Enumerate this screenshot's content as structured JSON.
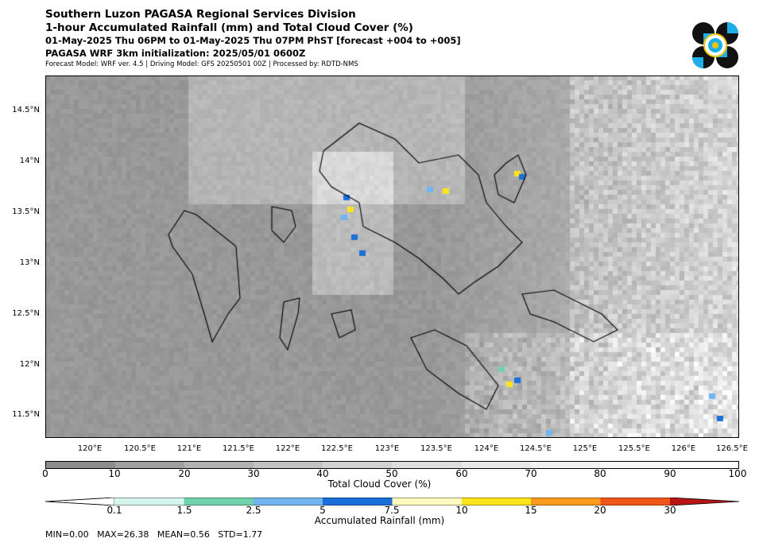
{
  "header": {
    "title_line1": "Southern Luzon PAGASA Regional Services Division",
    "title_line2": "1-hour Accumulated Rainfall (mm) and Total Cloud Cover (%)",
    "title_line3": "01-May-2025 Thu 06PM to 01-May-2025 Thu 07PM PhST [forecast +004 to +005]",
    "title_line4": "PAGASA WRF 3km initialization: 2025/05/01 0600Z",
    "title_line5": "Forecast Model: WRF ver. 4.5 | Driving Model: GFS 20250501 00Z | Processed by: RDTD-NMS"
  },
  "map": {
    "lat_labels": [
      "14.5°N",
      "14°N",
      "13.5°N",
      "13°N",
      "12.5°N",
      "12°N",
      "11.5°N"
    ],
    "lon_labels": [
      "120°E",
      "120.5°E",
      "121°E",
      "121.5°E",
      "122°E",
      "122.5°E",
      "123°E",
      "123.5°E",
      "124°E",
      "124.5°E",
      "125°E",
      "125.5°E",
      "126°E",
      "126.5°E"
    ]
  },
  "cloud_colorbar": {
    "label": "Total Cloud Cover (%)",
    "ticks": [
      "0",
      "10",
      "20",
      "30",
      "40",
      "50",
      "60",
      "70",
      "80",
      "90",
      "100"
    ],
    "colors": [
      "#8c8c8c",
      "#a0a0a0",
      "#b3b3b3",
      "#c3c3c3",
      "#d2d2d2",
      "#dedede",
      "#e8e8e8",
      "#f1f1f1",
      "#f8f8f8",
      "#ffffff"
    ]
  },
  "rain_colorbar": {
    "label": "Accumulated Rainfall (mm)",
    "ticks": [
      "0.1",
      "1.5",
      "2.5",
      "5",
      "7.5",
      "10",
      "15",
      "20",
      "30"
    ],
    "colors": [
      "#ffffff",
      "#d5f5ec",
      "#6fd2ac",
      "#71b5f0",
      "#1a6fd8",
      "#fffbbf",
      "#fde51c",
      "#fb9a1c",
      "#f0561a",
      "#b81414"
    ]
  },
  "stats": {
    "text": "MIN=0.00   MAX=26.38   MEAN=0.56   STD=1.77"
  }
}
